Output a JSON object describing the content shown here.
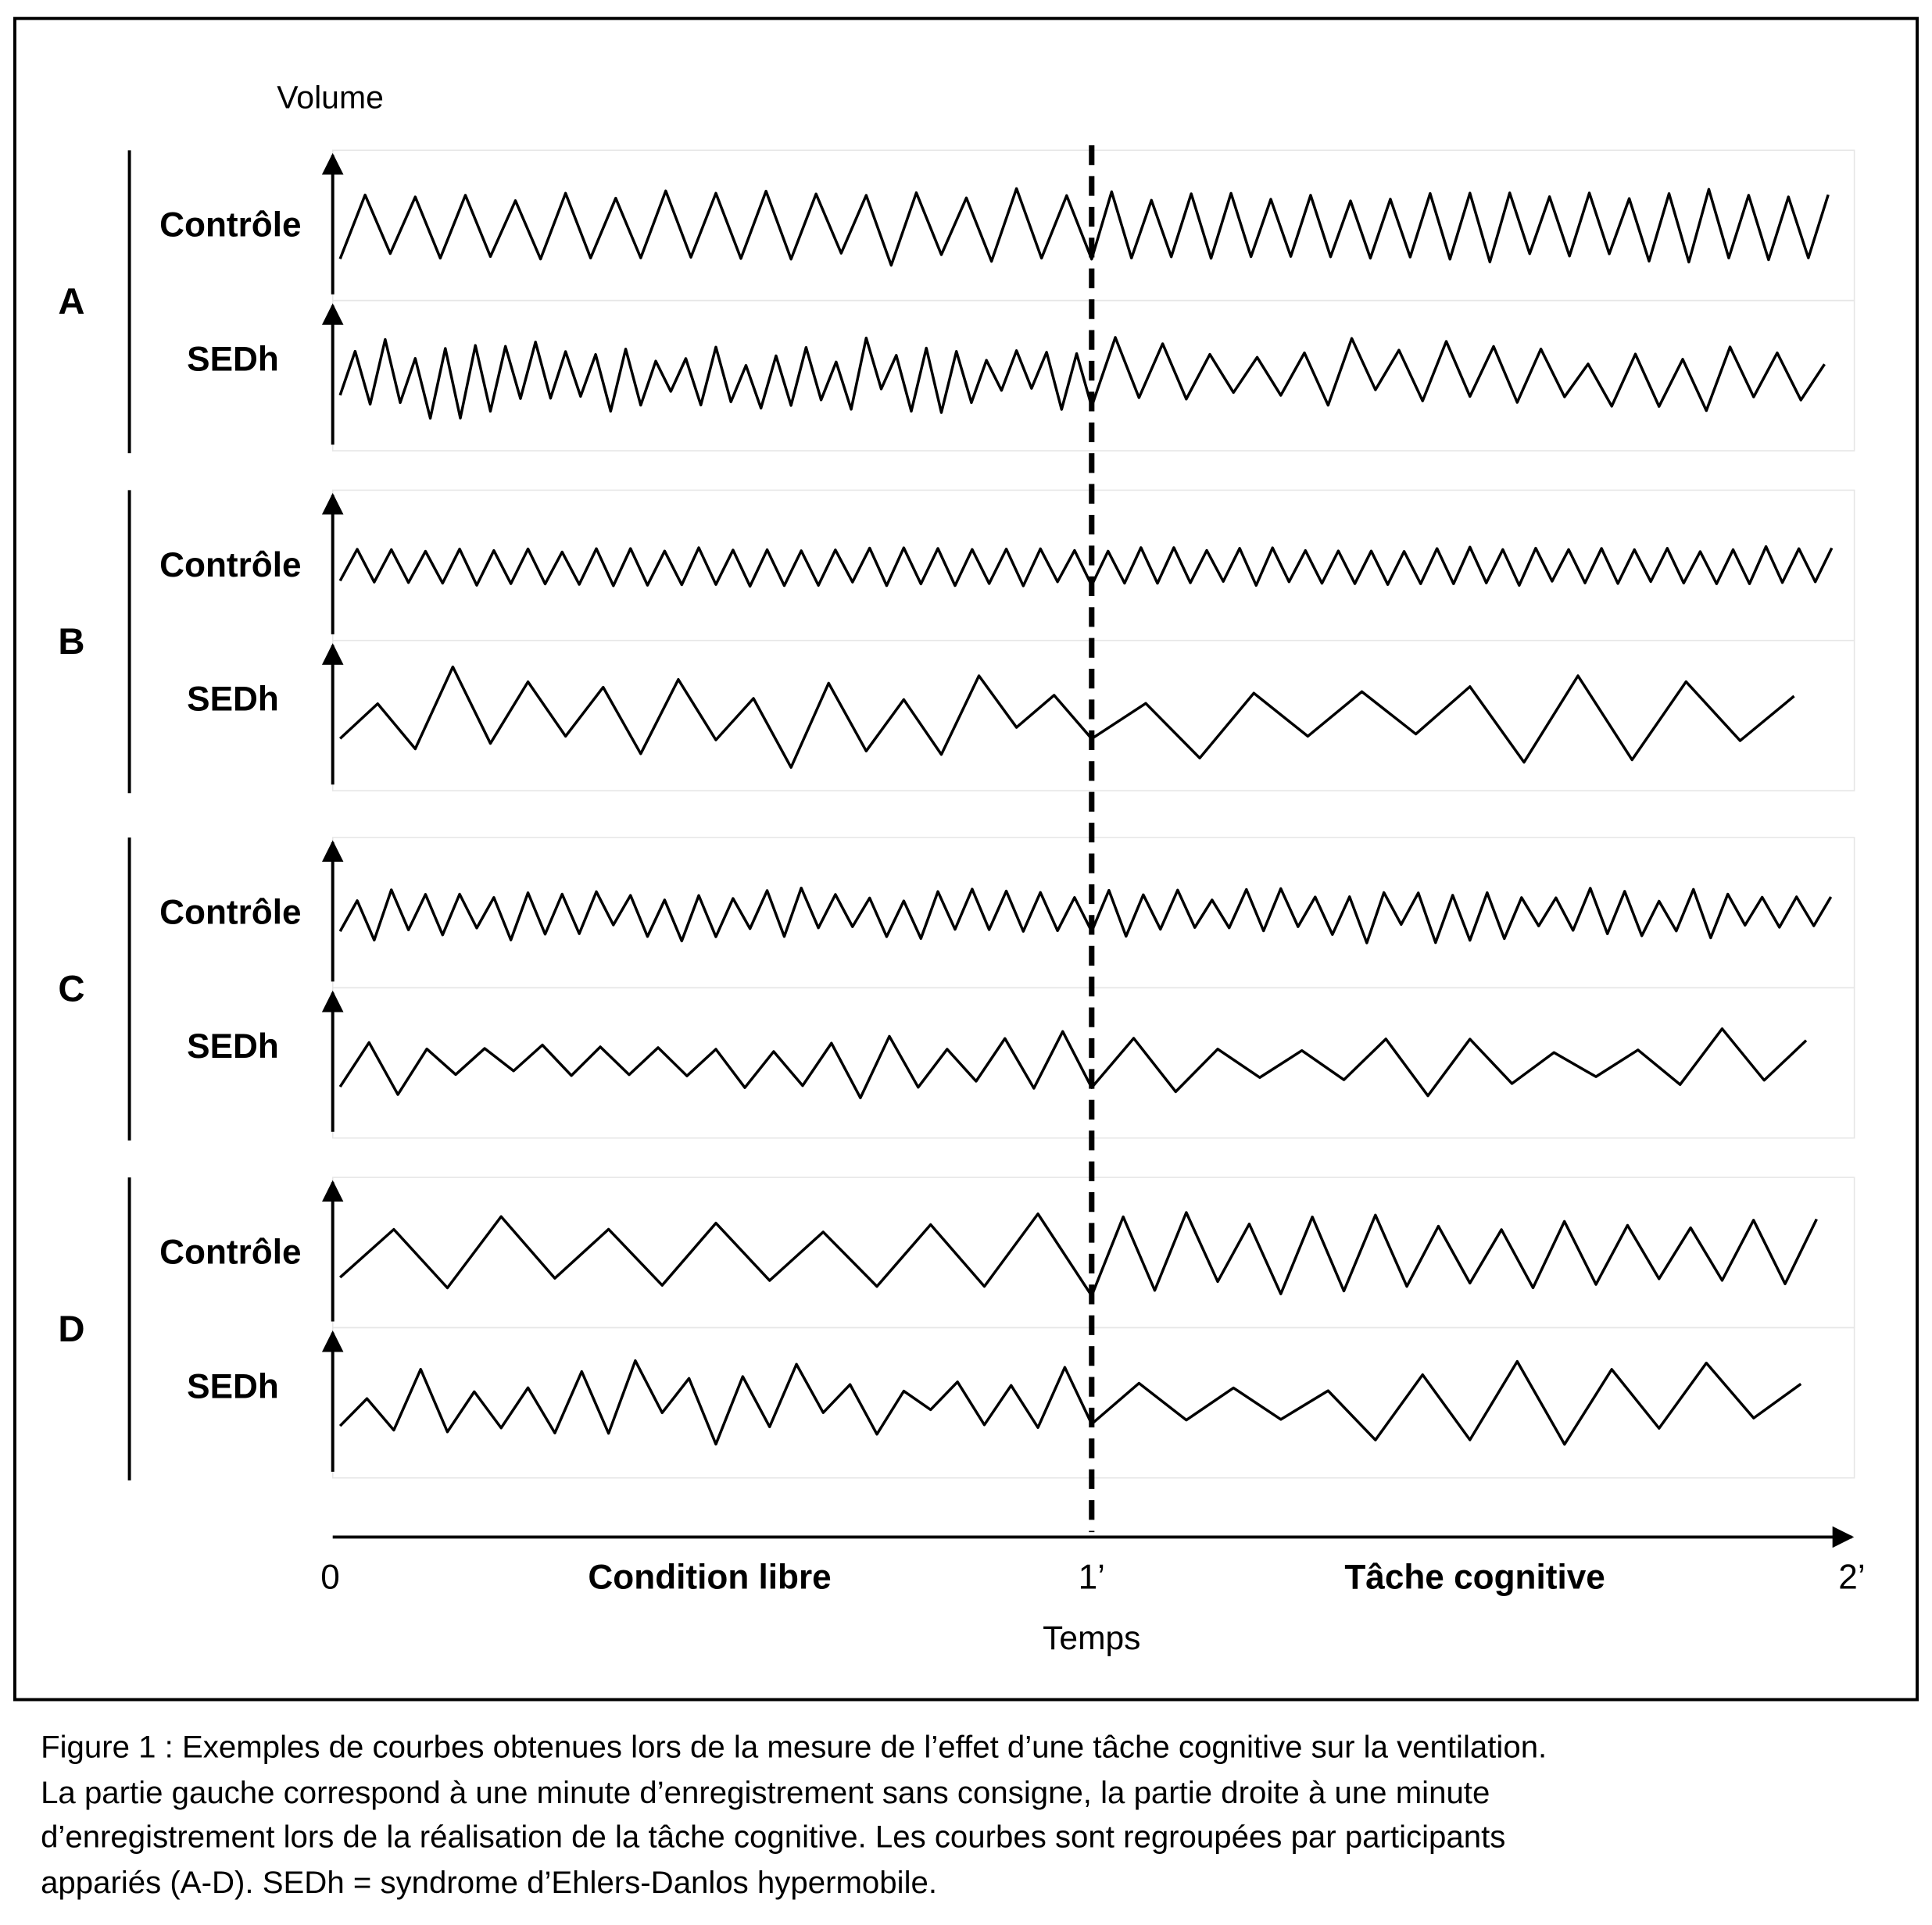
{
  "axis_label_y": "Volume",
  "groups": [
    {
      "label": "A",
      "rows": [
        {
          "label": "Contrôle"
        },
        {
          "label": "SEDh"
        }
      ]
    },
    {
      "label": "B",
      "rows": [
        {
          "label": "Contrôle"
        },
        {
          "label": "SEDh"
        }
      ]
    },
    {
      "label": "C",
      "rows": [
        {
          "label": "Contrôle"
        },
        {
          "label": "SEDh"
        }
      ]
    },
    {
      "label": "D",
      "rows": [
        {
          "label": "Contrôle"
        },
        {
          "label": "SEDh"
        }
      ]
    }
  ],
  "x_axis": {
    "ticks": [
      "0",
      "1’",
      "2’"
    ],
    "segments": [
      "Condition libre",
      "Tâche cognitive"
    ],
    "label": "Temps"
  },
  "caption": [
    "Figure 1 : Exemples de courbes obtenues lors de la mesure de l’effet d’une tâche cognitive sur la ventilation.",
    "La partie gauche correspond à une minute d’enregistrement sans consigne, la partie droite à une minute",
    "d’enregistrement lors de la réalisation de la tâche cognitive.  Les courbes sont regroupées par participants",
    "appariés (A-D). SEDh = syndrome d’Ehlers-Danlos hypermobile."
  ]
}
